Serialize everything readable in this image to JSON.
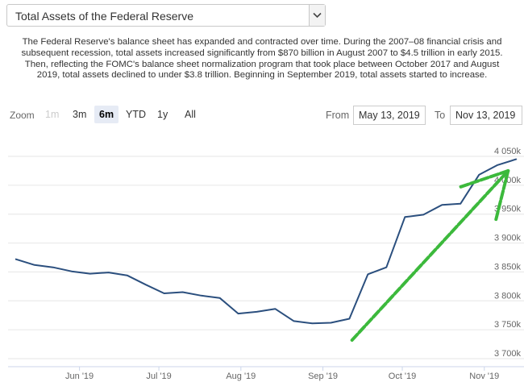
{
  "selector": {
    "title": "Total Assets of the Federal Reserve"
  },
  "description": "The Federal Reserve's balance sheet has expanded and contracted over time. During the 2007–08 financial crisis and subsequent recession, total assets increased significantly from $870 billion in August 2007 to $4.5 trillion in early 2015. Then, reflecting the FOMC's balance sheet normalization program that took place between October 2017 and August 2019, total assets declined to under $3.8 trillion. Beginning in September 2019, total assets started to increase.",
  "range_selector": {
    "zoom_label": "Zoom",
    "buttons": [
      {
        "label": "1m",
        "state": "disabled"
      },
      {
        "label": "3m",
        "state": "normal"
      },
      {
        "label": "6m",
        "state": "active"
      },
      {
        "label": "YTD",
        "state": "normal"
      },
      {
        "label": "1y",
        "state": "normal"
      },
      {
        "label": "All",
        "state": "normal"
      }
    ],
    "from_label": "From",
    "from_value": "May 13, 2019",
    "to_label": "To",
    "to_value": "Nov 13, 2019"
  },
  "colors": {
    "line": "#2b4f7e",
    "grid": "#e6e6e6",
    "annotation": "#3cb93c"
  },
  "chart_data": {
    "type": "line",
    "x_tick_labels": [
      "Jun '19",
      "Jul '19",
      "Aug '19",
      "Sep '19",
      "Oct '19",
      "Nov '19"
    ],
    "y_tick_labels": [
      "3 700k",
      "3 750k",
      "3 800k",
      "3 850k",
      "3 900k",
      "3 950k",
      "4 000k",
      "4 050k"
    ],
    "ylim": [
      3700,
      4050
    ],
    "y_unit": "millions of dollars",
    "x": [
      "2019-05-08",
      "2019-05-15",
      "2019-05-22",
      "2019-05-29",
      "2019-06-05",
      "2019-06-12",
      "2019-06-19",
      "2019-06-26",
      "2019-07-03",
      "2019-07-10",
      "2019-07-17",
      "2019-07-24",
      "2019-07-31",
      "2019-08-07",
      "2019-08-14",
      "2019-08-21",
      "2019-08-28",
      "2019-09-04",
      "2019-09-11",
      "2019-09-18",
      "2019-09-25",
      "2019-10-02",
      "2019-10-09",
      "2019-10-16",
      "2019-10-23",
      "2019-10-30",
      "2019-11-06",
      "2019-11-13"
    ],
    "values": [
      3872,
      3862,
      3858,
      3851,
      3847,
      3849,
      3844,
      3828,
      3813,
      3815,
      3809,
      3805,
      3778,
      3781,
      3786,
      3765,
      3761,
      3762,
      3769,
      3846,
      3858,
      3945,
      3949,
      3966,
      3968,
      4018,
      4035,
      4045
    ],
    "annotations": [
      {
        "type": "arrow",
        "from": [
          "2019-09-12",
          3732
        ],
        "to": [
          "2019-11-10",
          4025
        ]
      }
    ],
    "grid": true,
    "legend": "none"
  }
}
